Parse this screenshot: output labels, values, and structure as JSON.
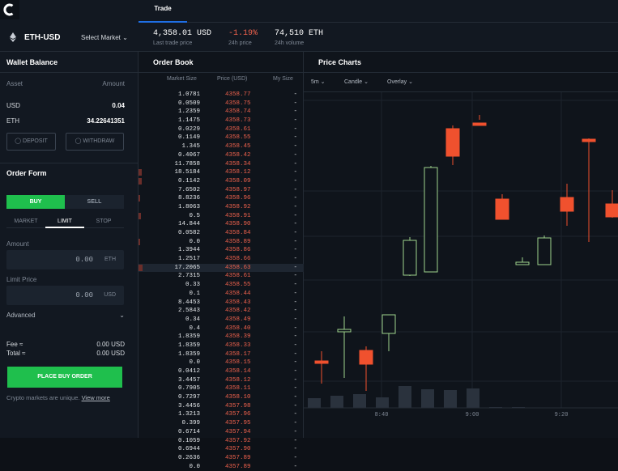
{
  "app": {
    "tab": "Trade"
  },
  "product": {
    "pair": "ETH-USD",
    "select_label": "Select Market"
  },
  "stats": [
    {
      "value": "4,358.01 USD",
      "label": "Last trade price"
    },
    {
      "value": "-1.19%",
      "label": "24h price"
    },
    {
      "value": "74,510 ETH",
      "label": "24h volume"
    }
  ],
  "wallet": {
    "title": "Wallet Balance",
    "col_asset": "Asset",
    "col_amount": "Amount",
    "rows": [
      {
        "asset": "USD",
        "amount": "0.04"
      },
      {
        "asset": "ETH",
        "amount": "34.22641351"
      }
    ],
    "deposit": "DEPOSIT",
    "withdraw": "WITHDRAW"
  },
  "order_form": {
    "title": "Order Form",
    "buy": "BUY",
    "sell": "SELL",
    "types": [
      "MARKET",
      "LIMIT",
      "STOP"
    ],
    "amount_label": "Amount",
    "amount_value": "0.00",
    "amount_unit": "ETH",
    "limit_label": "Limit Price",
    "limit_value": "0.00",
    "limit_unit": "USD",
    "advanced": "Advanced",
    "fee_label": "Fee ≈",
    "fee_value": "0.00 USD",
    "total_label": "Total ≈",
    "total_value": "0.00 USD",
    "place": "PLACE BUY ORDER",
    "note": "Crypto markets are unique.",
    "note_link": "View more"
  },
  "order_book": {
    "title": "Order Book",
    "cols": [
      "Market Size",
      "Price (USD)",
      "My Size"
    ],
    "rows": [
      [
        "1.0781",
        "4358.77"
      ],
      [
        "0.0509",
        "4358.75"
      ],
      [
        "1.2359",
        "4358.74"
      ],
      [
        "1.1475",
        "4358.73"
      ],
      [
        "0.0229",
        "4358.61"
      ],
      [
        "0.1149",
        "4358.55"
      ],
      [
        "1.345",
        "4358.45"
      ],
      [
        "0.4067",
        "4358.42"
      ],
      [
        "11.7858",
        "4358.34"
      ],
      [
        "18.5184",
        "4358.12"
      ],
      [
        "0.1142",
        "4358.09"
      ],
      [
        "7.6502",
        "4358.97"
      ],
      [
        "8.8236",
        "4358.96"
      ],
      [
        "1.8063",
        "4358.92"
      ],
      [
        "0.5",
        "4358.91"
      ],
      [
        "14.844",
        "4358.90"
      ],
      [
        "0.0582",
        "4358.84"
      ],
      [
        "0.0",
        "4358.89"
      ],
      [
        "1.3944",
        "4358.86"
      ],
      [
        "1.2517",
        "4358.66"
      ],
      [
        "17.2065",
        "4358.63"
      ],
      [
        "2.7315",
        "4358.61"
      ],
      [
        "0.33",
        "4358.55"
      ],
      [
        "0.1",
        "4358.44"
      ],
      [
        "8.4453",
        "4358.43"
      ],
      [
        "2.5843",
        "4358.42"
      ],
      [
        "0.34",
        "4358.49"
      ],
      [
        "0.4",
        "4358.40"
      ],
      [
        "1.8359",
        "4358.39"
      ],
      [
        "1.8359",
        "4358.33"
      ],
      [
        "1.8359",
        "4358.17"
      ],
      [
        "0.0",
        "4358.15"
      ],
      [
        "0.0412",
        "4358.14"
      ],
      [
        "3.4457",
        "4358.12"
      ],
      [
        "0.7905",
        "4358.11"
      ],
      [
        "0.7297",
        "4358.10"
      ],
      [
        "3.4456",
        "4357.98"
      ],
      [
        "1.3213",
        "4357.96"
      ],
      [
        "0.399",
        "4357.95"
      ],
      [
        "0.6714",
        "4357.94"
      ],
      [
        "0.1059",
        "4357.92"
      ],
      [
        "0.6944",
        "4357.90"
      ],
      [
        "0.2636",
        "4357.89"
      ],
      [
        "0.0",
        "4357.89"
      ]
    ],
    "my_size": "-"
  },
  "chart": {
    "title": "Price Charts",
    "interval": "5m",
    "style": "Candle",
    "overlay": "Overlay",
    "x_ticks": [
      "8:40",
      "9:00",
      "9:20"
    ],
    "colors": {
      "up": "#9fd38c",
      "down": "#f0512e",
      "volume": "#2a323d"
    }
  },
  "colors": {
    "accent": "#1f6fe5",
    "buy": "#1fbf4d",
    "sell_price": "#f0624d"
  }
}
